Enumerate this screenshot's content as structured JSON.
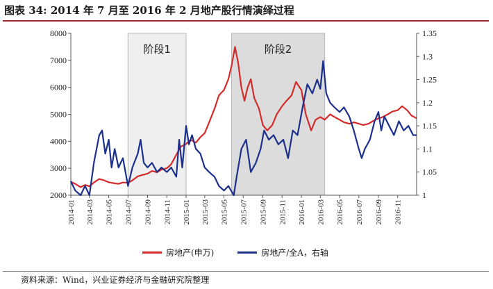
{
  "figure": {
    "title": "图表 34:  2014 年 7 月至 2016 年 2 月地产股行情演绎过程",
    "source": "资料来源：Wind，兴业证券经济与金融研究院整理"
  },
  "colors": {
    "red_series": "#d42a2a",
    "blue_series": "#1b2f8c",
    "phase_shade_1": "#efefef",
    "phase_shade_2": "#dcdcdc",
    "title_rule": "#9a2a2a"
  },
  "chart_data": {
    "type": "line",
    "title": "",
    "x_tick_labels": [
      "2014-01",
      "2014-03",
      "2014-05",
      "2014-07",
      "2014-09",
      "2014-11",
      "2015-01",
      "2015-03",
      "2015-05",
      "2015-07",
      "2015-09",
      "2015-11",
      "2016-01",
      "2016-03",
      "2016-05",
      "2016-07",
      "2016-09",
      "2016-11"
    ],
    "xlim": [
      "2014-01-01",
      "2016-12-31"
    ],
    "y_left": {
      "ylim": [
        2000,
        8000
      ],
      "ticks": [
        2000,
        3000,
        4000,
        5000,
        6000,
        7000,
        8000
      ]
    },
    "y_right": {
      "ylim": [
        1,
        1.35
      ],
      "ticks": [
        "1",
        "1.05",
        "1.1",
        "1.15",
        "1.2",
        "1.25",
        "1.3",
        "1.35"
      ],
      "label": ""
    },
    "grid": false,
    "legend_position": "bottom",
    "phases": [
      {
        "label": "阶段1",
        "start": "2014-07-01",
        "end": "2015-01-01"
      },
      {
        "label": "阶段2",
        "start": "2015-05-25",
        "end": "2016-03-15"
      }
    ],
    "series": [
      {
        "name": "房地产(申万)",
        "axis": "left",
        "color": "#d42a2a",
        "points": [
          [
            "2014-01-01",
            2500
          ],
          [
            "2014-01-15",
            2420
          ],
          [
            "2014-02-01",
            2300
          ],
          [
            "2014-02-15",
            2380
          ],
          [
            "2014-03-01",
            2330
          ],
          [
            "2014-03-15",
            2470
          ],
          [
            "2014-04-01",
            2600
          ],
          [
            "2014-04-15",
            2560
          ],
          [
            "2014-05-01",
            2480
          ],
          [
            "2014-05-15",
            2450
          ],
          [
            "2014-06-01",
            2420
          ],
          [
            "2014-06-15",
            2470
          ],
          [
            "2014-07-01",
            2460
          ],
          [
            "2014-07-15",
            2550
          ],
          [
            "2014-08-01",
            2700
          ],
          [
            "2014-08-15",
            2750
          ],
          [
            "2014-09-01",
            2800
          ],
          [
            "2014-09-15",
            2900
          ],
          [
            "2014-10-01",
            2850
          ],
          [
            "2014-10-15",
            2950
          ],
          [
            "2014-11-01",
            3000
          ],
          [
            "2014-11-15",
            3150
          ],
          [
            "2014-12-01",
            3500
          ],
          [
            "2014-12-15",
            3800
          ],
          [
            "2015-01-01",
            3900
          ],
          [
            "2015-01-15",
            4050
          ],
          [
            "2015-02-01",
            3950
          ],
          [
            "2015-02-15",
            4150
          ],
          [
            "2015-03-01",
            4300
          ],
          [
            "2015-03-15",
            4700
          ],
          [
            "2015-04-01",
            5200
          ],
          [
            "2015-04-15",
            5700
          ],
          [
            "2015-05-01",
            5900
          ],
          [
            "2015-05-15",
            6300
          ],
          [
            "2015-05-25",
            6800
          ],
          [
            "2015-06-05",
            7500
          ],
          [
            "2015-06-15",
            6900
          ],
          [
            "2015-06-25",
            6000
          ],
          [
            "2015-07-05",
            5500
          ],
          [
            "2015-07-15",
            6000
          ],
          [
            "2015-07-25",
            6300
          ],
          [
            "2015-08-05",
            5600
          ],
          [
            "2015-08-20",
            5200
          ],
          [
            "2015-09-01",
            4600
          ],
          [
            "2015-09-15",
            4400
          ],
          [
            "2015-10-01",
            4600
          ],
          [
            "2015-10-15",
            5000
          ],
          [
            "2015-11-01",
            5300
          ],
          [
            "2015-11-15",
            5500
          ],
          [
            "2015-12-01",
            5700
          ],
          [
            "2015-12-15",
            6200
          ],
          [
            "2016-01-01",
            5900
          ],
          [
            "2016-01-15",
            5000
          ],
          [
            "2016-02-01",
            4400
          ],
          [
            "2016-02-15",
            4800
          ],
          [
            "2016-03-01",
            4900
          ],
          [
            "2016-03-15",
            4800
          ],
          [
            "2016-04-01",
            5000
          ],
          [
            "2016-04-15",
            4900
          ],
          [
            "2016-05-01",
            4800
          ],
          [
            "2016-05-15",
            4700
          ],
          [
            "2016-06-01",
            4650
          ],
          [
            "2016-06-15",
            4700
          ],
          [
            "2016-07-01",
            4650
          ],
          [
            "2016-07-15",
            4600
          ],
          [
            "2016-08-01",
            4650
          ],
          [
            "2016-08-15",
            4750
          ],
          [
            "2016-09-01",
            4850
          ],
          [
            "2016-09-15",
            4900
          ],
          [
            "2016-10-01",
            5000
          ],
          [
            "2016-10-15",
            5100
          ],
          [
            "2016-11-01",
            5150
          ],
          [
            "2016-11-15",
            5300
          ],
          [
            "2016-12-01",
            5150
          ],
          [
            "2016-12-15",
            4950
          ],
          [
            "2016-12-31",
            4850
          ]
        ]
      },
      {
        "name": "房地产/全A，右轴",
        "axis": "right",
        "color": "#1b2f8c",
        "points": [
          [
            "2014-01-01",
            1.03
          ],
          [
            "2014-01-15",
            1.01
          ],
          [
            "2014-02-01",
            1.0
          ],
          [
            "2014-02-15",
            1.02
          ],
          [
            "2014-03-01",
            1.0
          ],
          [
            "2014-03-15",
            1.07
          ],
          [
            "2014-04-01",
            1.13
          ],
          [
            "2014-04-10",
            1.14
          ],
          [
            "2014-04-20",
            1.09
          ],
          [
            "2014-05-01",
            1.12
          ],
          [
            "2014-05-10",
            1.06
          ],
          [
            "2014-05-20",
            1.1
          ],
          [
            "2014-06-01",
            1.06
          ],
          [
            "2014-06-15",
            1.08
          ],
          [
            "2014-07-01",
            1.02
          ],
          [
            "2014-07-15",
            1.06
          ],
          [
            "2014-08-01",
            1.09
          ],
          [
            "2014-08-10",
            1.12
          ],
          [
            "2014-08-20",
            1.07
          ],
          [
            "2014-09-01",
            1.06
          ],
          [
            "2014-09-15",
            1.07
          ],
          [
            "2014-10-01",
            1.05
          ],
          [
            "2014-10-15",
            1.06
          ],
          [
            "2014-11-01",
            1.05
          ],
          [
            "2014-11-15",
            1.06
          ],
          [
            "2014-12-01",
            1.04
          ],
          [
            "2014-12-10",
            1.12
          ],
          [
            "2014-12-20",
            1.06
          ],
          [
            "2015-01-01",
            1.15
          ],
          [
            "2015-01-10",
            1.11
          ],
          [
            "2015-01-20",
            1.13
          ],
          [
            "2015-02-01",
            1.1
          ],
          [
            "2015-02-15",
            1.09
          ],
          [
            "2015-03-01",
            1.06
          ],
          [
            "2015-03-15",
            1.05
          ],
          [
            "2015-04-01",
            1.04
          ],
          [
            "2015-04-15",
            1.02
          ],
          [
            "2015-05-01",
            1.01
          ],
          [
            "2015-05-15",
            1.02
          ],
          [
            "2015-06-01",
            1.0
          ],
          [
            "2015-06-10",
            1.04
          ],
          [
            "2015-06-25",
            1.1
          ],
          [
            "2015-07-10",
            1.12
          ],
          [
            "2015-07-25",
            1.05
          ],
          [
            "2015-08-10",
            1.07
          ],
          [
            "2015-08-25",
            1.1
          ],
          [
            "2015-09-05",
            1.14
          ],
          [
            "2015-09-20",
            1.12
          ],
          [
            "2015-10-05",
            1.13
          ],
          [
            "2015-10-20",
            1.11
          ],
          [
            "2015-11-05",
            1.12
          ],
          [
            "2015-11-20",
            1.08
          ],
          [
            "2015-12-05",
            1.14
          ],
          [
            "2015-12-20",
            1.13
          ],
          [
            "2016-01-05",
            1.19
          ],
          [
            "2016-01-20",
            1.24
          ],
          [
            "2016-02-05",
            1.22
          ],
          [
            "2016-02-20",
            1.25
          ],
          [
            "2016-03-01",
            1.23
          ],
          [
            "2016-03-10",
            1.29
          ],
          [
            "2016-03-20",
            1.22
          ],
          [
            "2016-04-01",
            1.2
          ],
          [
            "2016-04-15",
            1.19
          ],
          [
            "2016-05-01",
            1.18
          ],
          [
            "2016-05-15",
            1.19
          ],
          [
            "2016-06-01",
            1.17
          ],
          [
            "2016-06-15",
            1.14
          ],
          [
            "2016-07-01",
            1.1
          ],
          [
            "2016-07-10",
            1.08
          ],
          [
            "2016-07-20",
            1.1
          ],
          [
            "2016-08-05",
            1.12
          ],
          [
            "2016-08-20",
            1.16
          ],
          [
            "2016-09-01",
            1.18
          ],
          [
            "2016-09-10",
            1.14
          ],
          [
            "2016-09-20",
            1.17
          ],
          [
            "2016-10-05",
            1.15
          ],
          [
            "2016-10-20",
            1.13
          ],
          [
            "2016-11-05",
            1.16
          ],
          [
            "2016-11-20",
            1.14
          ],
          [
            "2016-12-05",
            1.15
          ],
          [
            "2016-12-20",
            1.13
          ],
          [
            "2016-12-31",
            1.13
          ]
        ]
      }
    ]
  }
}
